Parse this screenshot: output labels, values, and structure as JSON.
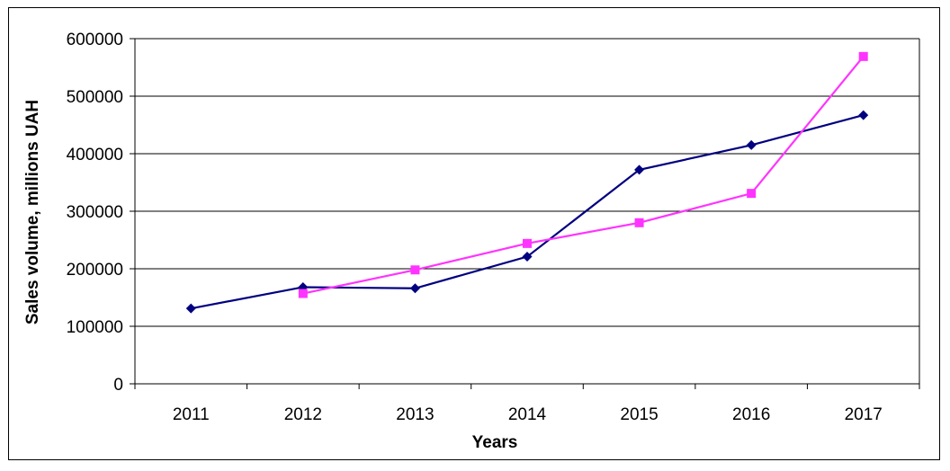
{
  "chart_data": {
    "type": "line",
    "title": "",
    "xlabel": "Years",
    "ylabel": "Sales volume, millions UAH",
    "categories": [
      "2011",
      "2012",
      "2013",
      "2014",
      "2015",
      "2016",
      "2017"
    ],
    "ylim": [
      0,
      600000
    ],
    "yticks": [
      0,
      100000,
      200000,
      300000,
      400000,
      500000,
      600000
    ],
    "ytick_labels": [
      "0",
      "100000",
      "200000",
      "300000",
      "400000",
      "500000",
      "600000"
    ],
    "grid": true,
    "legend": "none",
    "series": [
      {
        "color": "#000080",
        "marker": "diamond",
        "values": [
          131000,
          168000,
          166000,
          221000,
          372000,
          415000,
          467000
        ]
      },
      {
        "color": "#FF33FF",
        "marker": "square",
        "values": [
          null,
          157000,
          198000,
          244000,
          280000,
          331000,
          569000
        ]
      }
    ]
  }
}
